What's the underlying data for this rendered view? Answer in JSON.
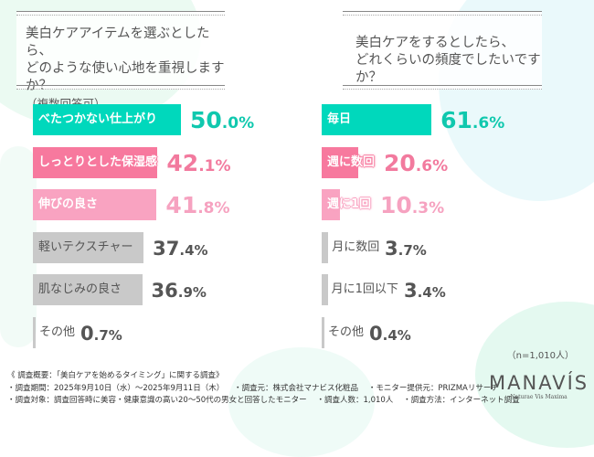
{
  "colors": {
    "teal": "#00d8bc",
    "pink": "#f7799e",
    "lightpink": "#f9a3c1",
    "gray": "#c9c9c9",
    "teal_text": "#10c8ae",
    "pink_text": "#f27a9e",
    "lightpink_text": "#f6a2c0",
    "gray_text": "#555555"
  },
  "chart_data": [
    {
      "type": "bar",
      "orientation": "horizontal",
      "title": "美白ケアアイテムを選ぶとしたら、どのような使い心地を重視しますか？",
      "subtitle": "（複数回答可）",
      "unit": "%",
      "categories": [
        "べたつかない仕上がり",
        "しっとりとした保湿感",
        "伸びの良さ",
        "軽いテクスチャー",
        "肌なじみの良さ",
        "その他"
      ],
      "values": [
        50.0,
        42.1,
        41.8,
        37.4,
        36.9,
        0.7
      ],
      "bar_colors": [
        "teal",
        "pink",
        "lightpink",
        "gray",
        "gray",
        "gray"
      ]
    },
    {
      "type": "bar",
      "orientation": "horizontal",
      "title": "美白ケアをするとしたら、どれくらいの頻度でしたいですか？",
      "unit": "%",
      "categories": [
        "毎日",
        "週に数回",
        "週に1回",
        "月に数回",
        "月に1回以下",
        "その他"
      ],
      "values": [
        61.6,
        20.6,
        10.3,
        3.7,
        3.4,
        0.4
      ],
      "bar_colors": [
        "teal",
        "pink",
        "lightpink",
        "gray",
        "gray",
        "gray"
      ]
    }
  ],
  "q1": {
    "line1": "美白ケアアイテムを選ぶとしたら、",
    "line2": "どのような使い心地を重視しますか？",
    "sub": "（複数回答可）"
  },
  "q2": {
    "line1": "美白ケアをするとしたら、",
    "line2": "どれくらいの頻度でしたいですか？"
  },
  "sample": "（n=1,010人）",
  "footer": {
    "title": "《 調査概要：「美白ケアを始めるタイミング」に関する調査》",
    "period": "・調査期間：2025年9月10日（水）～2025年9月11日（木）",
    "source": "・調査元：株式会社マナビス化粧品",
    "monitor": "・モニター提供元：PRIZMAリサーチ",
    "target": "・調査対象：調査回答時に美容・健康意識の高い20～50代の男女と回答したモニター",
    "count": "・調査人数：1,010人",
    "method": "・調査方法：インターネット調査"
  },
  "logo": {
    "name": "MANAVÍS",
    "tagline": "Naturae Vis Maxima"
  }
}
